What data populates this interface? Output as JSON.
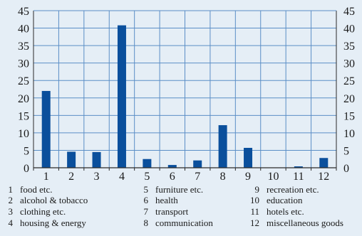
{
  "chart_data": {
    "type": "bar",
    "categories": [
      "1",
      "2",
      "3",
      "4",
      "5",
      "6",
      "7",
      "8",
      "9",
      "10",
      "11",
      "12"
    ],
    "values": [
      22,
      4.6,
      4.5,
      40.8,
      2.5,
      0.8,
      2.1,
      12.2,
      5.7,
      0,
      0.4,
      2.8
    ],
    "ylim": [
      0,
      45
    ],
    "yticks": [
      0,
      5,
      10,
      15,
      20,
      25,
      30,
      35,
      40,
      45
    ],
    "ytick_labels": [
      "0",
      "5",
      "10",
      "15",
      "20",
      "25",
      "30",
      "35",
      "40",
      "45"
    ],
    "grid": true,
    "bar_color": "#0a4f9c",
    "grid_color": "#5b8ec6",
    "background_color": "#e5eef6",
    "legend": [
      {
        "num": "1",
        "label": "food etc."
      },
      {
        "num": "2",
        "label": "alcohol & tobacco"
      },
      {
        "num": "3",
        "label": "clothing etc."
      },
      {
        "num": "4",
        "label": "housing & energy"
      },
      {
        "num": "5",
        "label": "furniture etc."
      },
      {
        "num": "6",
        "label": "health"
      },
      {
        "num": "7",
        "label": "transport"
      },
      {
        "num": "8",
        "label": "communication"
      },
      {
        "num": "9",
        "label": "recreation etc."
      },
      {
        "num": "10",
        "label": "education"
      },
      {
        "num": "11",
        "label": "hotels etc."
      },
      {
        "num": "12",
        "label": "miscellaneous goods"
      }
    ]
  }
}
